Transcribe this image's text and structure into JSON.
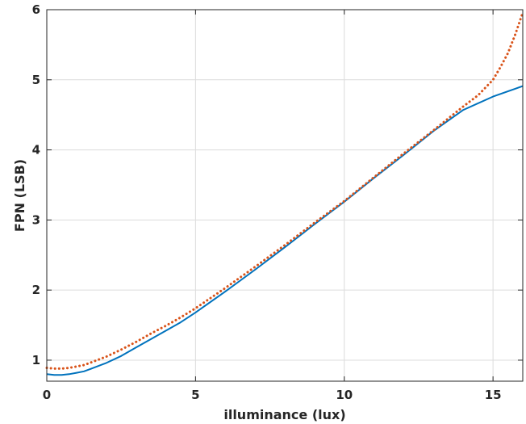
{
  "chart_data": {
    "type": "line",
    "xlabel": "illuminance (lux)",
    "ylabel": "FPN (LSB)",
    "xlim": [
      0,
      16
    ],
    "ylim": [
      0.7,
      6
    ],
    "xticks": [
      0,
      5,
      10,
      15
    ],
    "yticks": [
      1,
      2,
      3,
      4,
      5,
      6
    ],
    "grid": true,
    "series": [
      {
        "color": "#0072BD",
        "style": "solid",
        "x": [
          0,
          0.25,
          0.5,
          0.75,
          1.0,
          1.25,
          1.5,
          2.0,
          2.5,
          3.0,
          3.5,
          4.0,
          4.5,
          5.0,
          6.0,
          7.0,
          8.0,
          9.0,
          10.0,
          11.0,
          12.0,
          13.0,
          14.0,
          15.0,
          16.0
        ],
        "y": [
          0.8,
          0.79,
          0.79,
          0.8,
          0.82,
          0.84,
          0.88,
          0.96,
          1.06,
          1.18,
          1.3,
          1.42,
          1.54,
          1.68,
          1.98,
          2.29,
          2.61,
          2.94,
          3.26,
          3.6,
          3.93,
          4.27,
          4.57,
          4.76,
          4.91
        ]
      },
      {
        "color": "#D95319",
        "style": "dotted",
        "x": [
          0,
          0.25,
          0.5,
          0.75,
          1.0,
          1.25,
          1.5,
          2.0,
          2.5,
          3.0,
          3.5,
          4.0,
          4.5,
          5.0,
          6.0,
          7.0,
          8.0,
          9.0,
          10.0,
          11.0,
          12.0,
          13.0,
          14.0,
          14.5,
          15.0,
          15.25,
          15.5,
          15.75,
          16.0
        ],
        "y": [
          0.89,
          0.88,
          0.88,
          0.89,
          0.91,
          0.93,
          0.97,
          1.05,
          1.15,
          1.26,
          1.38,
          1.49,
          1.61,
          1.74,
          2.03,
          2.33,
          2.64,
          2.96,
          3.27,
          3.61,
          3.95,
          4.28,
          4.62,
          4.78,
          5.0,
          5.18,
          5.38,
          5.65,
          5.96
        ]
      }
    ]
  }
}
